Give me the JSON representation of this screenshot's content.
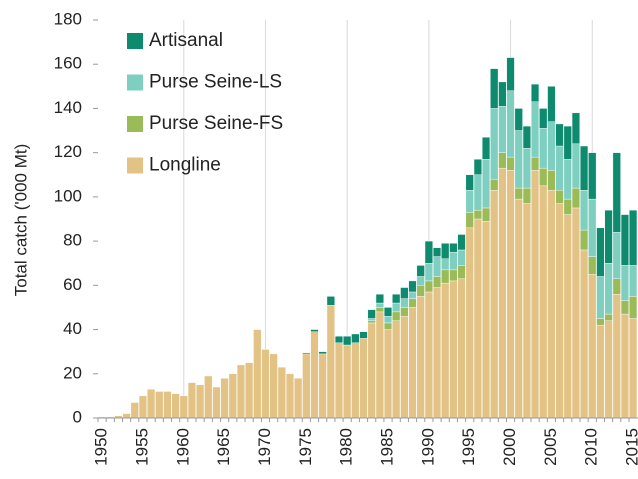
{
  "chart_data": {
    "type": "stacked_bar",
    "y_label": "Total catch ('000 Mt)",
    "x": [
      1950,
      1951,
      1952,
      1953,
      1954,
      1955,
      1956,
      1957,
      1958,
      1959,
      1960,
      1961,
      1962,
      1963,
      1964,
      1965,
      1966,
      1967,
      1968,
      1969,
      1970,
      1971,
      1972,
      1973,
      1974,
      1975,
      1976,
      1977,
      1978,
      1979,
      1980,
      1981,
      1982,
      1983,
      1984,
      1985,
      1986,
      1987,
      1988,
      1989,
      1990,
      1991,
      1992,
      1993,
      1994,
      1995,
      1996,
      1997,
      1998,
      1999,
      2000,
      2001,
      2002,
      2003,
      2004,
      2005,
      2006,
      2007,
      2008,
      2009,
      2010,
      2011,
      2012,
      2013,
      2014,
      2015
    ],
    "series": [
      {
        "name": "Longline",
        "color": "#e2c385",
        "values": [
          0.5,
          0.5,
          1,
          2,
          7,
          10,
          13,
          12,
          12,
          11,
          10,
          16,
          15,
          19,
          14,
          18,
          20,
          24,
          25,
          40,
          31,
          29,
          23,
          20,
          18,
          29,
          39,
          29,
          51,
          34,
          33,
          34,
          36,
          43,
          48,
          40,
          44,
          46,
          50,
          55,
          57,
          59,
          61,
          62,
          63,
          86,
          90,
          89,
          103,
          113,
          112,
          99,
          97,
          112,
          105,
          103,
          97,
          92,
          95,
          76,
          65,
          42,
          44,
          56,
          47,
          45
        ]
      },
      {
        "name": "Purse Seine-FS",
        "color": "#9bbb59",
        "values": [
          0,
          0,
          0,
          0,
          0,
          0,
          0,
          0,
          0,
          0,
          0,
          0,
          0,
          0,
          0,
          0,
          0,
          0,
          0,
          0,
          0,
          0,
          0,
          0,
          0,
          0,
          0,
          0,
          0,
          0,
          0,
          0,
          0,
          1,
          2,
          3,
          4,
          4,
          4,
          5,
          5,
          5,
          6,
          5,
          6,
          7,
          4,
          6,
          5,
          7,
          6,
          5,
          7,
          6,
          8,
          9,
          6,
          7,
          9,
          9,
          8,
          3,
          3,
          7,
          6,
          10
        ]
      },
      {
        "name": "Purse Seine-LS",
        "color": "#7ecfc0",
        "values": [
          0,
          0,
          0,
          0,
          0,
          0,
          0,
          0,
          0,
          0,
          0,
          0,
          0,
          0,
          0,
          0,
          0,
          0,
          0,
          0,
          0,
          0,
          0,
          0,
          0,
          0,
          0,
          0,
          0,
          0,
          0,
          0,
          0,
          1,
          2,
          3,
          4,
          4,
          3,
          4,
          8,
          9,
          5,
          8,
          7,
          10,
          16,
          22,
          32,
          21,
          30,
          26,
          18,
          25,
          18,
          22,
          20,
          18,
          20,
          18,
          26,
          19,
          23,
          21,
          16,
          14
        ]
      },
      {
        "name": "Artisanal",
        "color": "#0e8a6e",
        "values": [
          0,
          0,
          0,
          0,
          0,
          0,
          0,
          0,
          0,
          0,
          0,
          0,
          0,
          0,
          0,
          0,
          0,
          0,
          0,
          0,
          0,
          0,
          0,
          0,
          0,
          0.5,
          1,
          1,
          4,
          3,
          4,
          4,
          3,
          4,
          4,
          4,
          4,
          5,
          5,
          5,
          10,
          4,
          7,
          4,
          7,
          7,
          7,
          10,
          18,
          11,
          15,
          10,
          10,
          8,
          9,
          16,
          10,
          15,
          14,
          20,
          21,
          22,
          24,
          36,
          23,
          25
        ]
      }
    ],
    "xlim": [
      1949.5,
      2015.6
    ],
    "xticks": [
      1950,
      1955,
      1960,
      1965,
      1970,
      1975,
      1980,
      1985,
      1990,
      1995,
      2000,
      2005,
      2010,
      2015
    ],
    "ylim": [
      0,
      180
    ],
    "yticks": [
      0,
      20,
      40,
      60,
      80,
      100,
      120,
      140,
      160,
      180
    ],
    "grid": true
  }
}
